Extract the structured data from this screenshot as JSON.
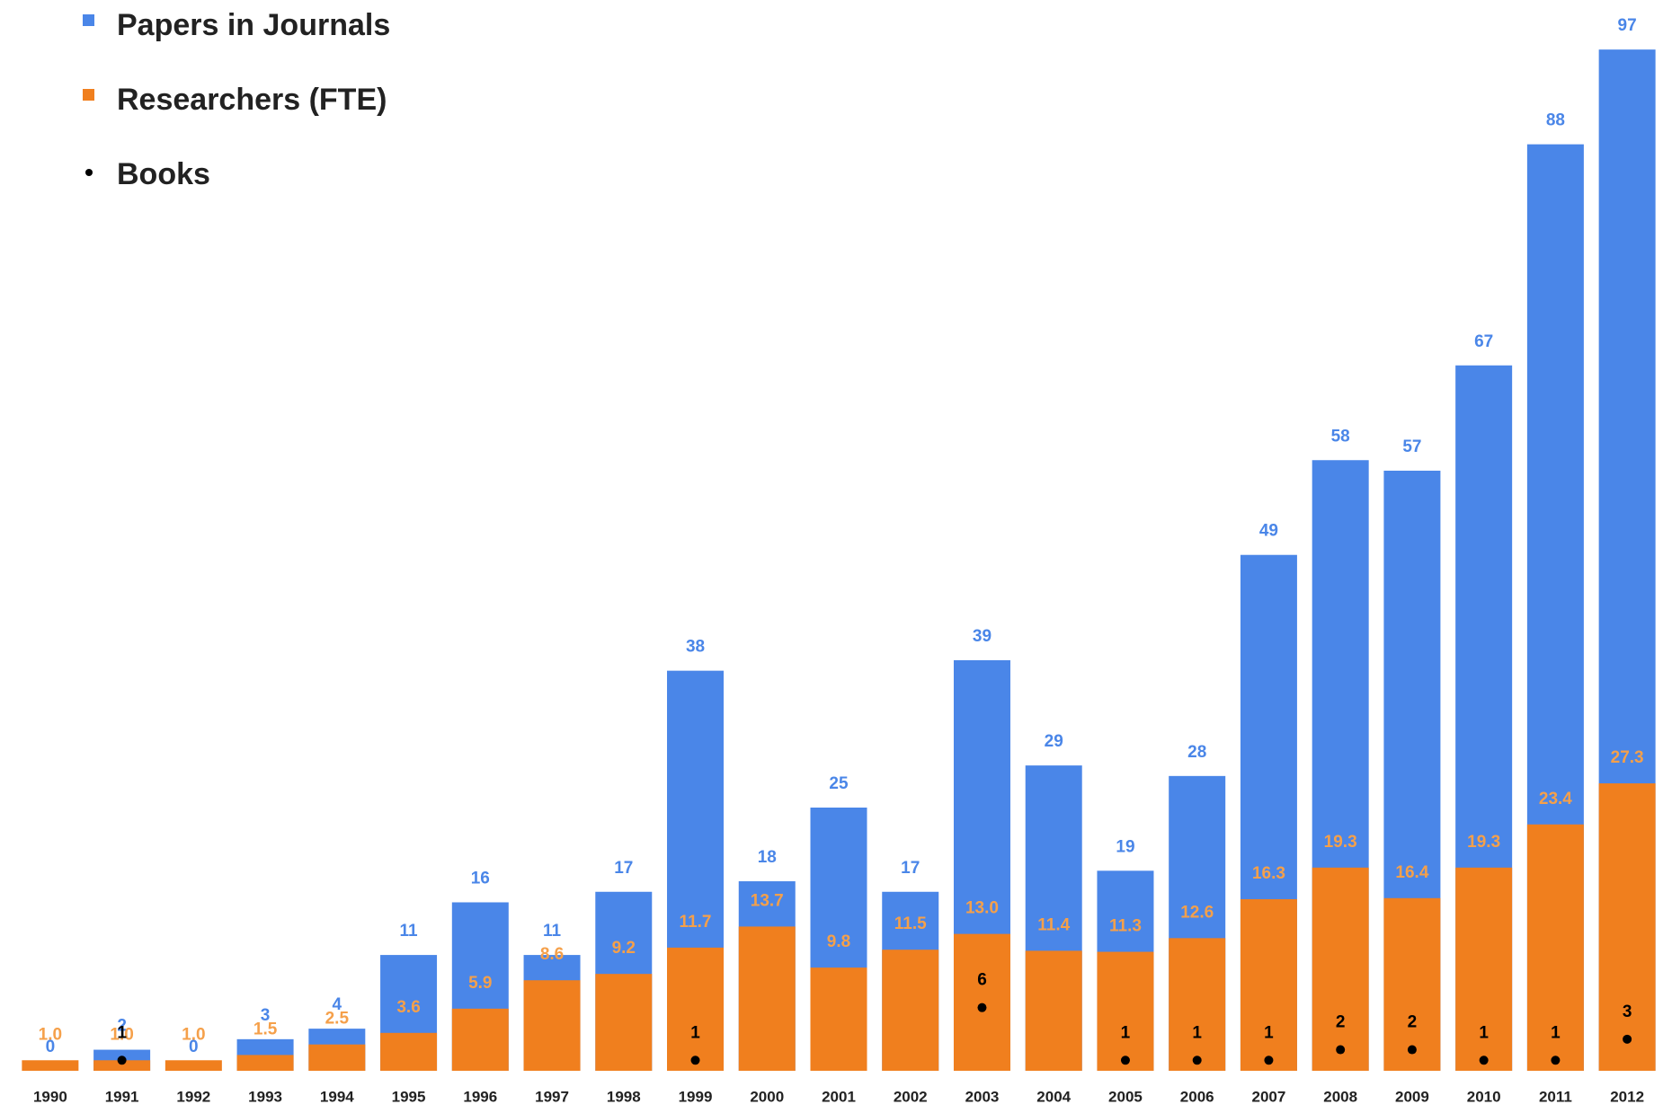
{
  "chart_data": {
    "type": "bar",
    "categories": [
      "1990",
      "1991",
      "1992",
      "1993",
      "1994",
      "1995",
      "1996",
      "1997",
      "1998",
      "1999",
      "2000",
      "2001",
      "2002",
      "2003",
      "2004",
      "2005",
      "2006",
      "2007",
      "2008",
      "2009",
      "2010",
      "2011",
      "2012"
    ],
    "series": [
      {
        "name": "Papers in Journals",
        "color": "#4a86e8",
        "values": [
          0,
          2,
          0,
          3,
          4,
          11,
          16,
          11,
          17,
          38,
          18,
          25,
          17,
          39,
          29,
          19,
          28,
          49,
          58,
          57,
          67,
          88,
          97
        ]
      },
      {
        "name": "Researchers (FTE)",
        "color": "#f07f1e",
        "values": [
          1,
          1,
          1,
          1.5,
          2.5,
          3.6,
          5.9,
          8.6,
          9.2,
          11.7,
          13.7,
          9.8,
          11.5,
          13,
          11.4,
          11.3,
          12.6,
          16.3,
          19.3,
          16.4,
          19.3,
          23.4,
          27.3
        ],
        "value_labels": [
          "1.0",
          "1.0",
          "1.0",
          "1.5",
          "2.5",
          "3.6",
          "5.9",
          "8.6",
          "9.2",
          "11.7",
          "13.7",
          "9.8",
          "11.5",
          "13.0",
          "11.4",
          "11.3",
          "12.6",
          "16.3",
          "19.3",
          "16.4",
          "19.3",
          "23.4",
          "27.3"
        ]
      },
      {
        "name": "Books",
        "color": "#000000",
        "type": "scatter",
        "values": [
          null,
          1,
          null,
          null,
          null,
          null,
          null,
          null,
          null,
          1,
          null,
          null,
          null,
          6,
          null,
          1,
          1,
          1,
          2,
          2,
          1,
          1,
          3
        ]
      }
    ],
    "ylim": [
      0,
      100
    ]
  }
}
